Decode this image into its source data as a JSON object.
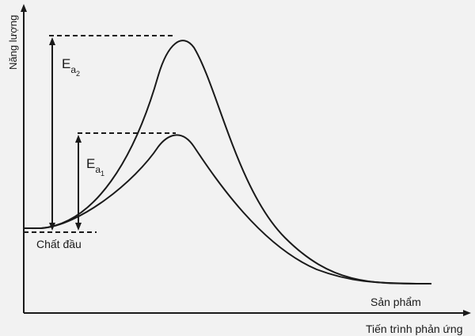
{
  "labels": {
    "y_axis": "Năng lượng",
    "x_axis": "Tiến trình phản ứng",
    "reactants": "Chất đầu",
    "products": "Sản phẩm",
    "ea2_main": "E",
    "ea2_sub": "a",
    "ea2_index": "2",
    "ea1_main": "E",
    "ea1_sub": "a",
    "ea1_index": "1"
  },
  "colors": {
    "ink": "#1a1a1a",
    "background": "#f2f2f2"
  }
}
